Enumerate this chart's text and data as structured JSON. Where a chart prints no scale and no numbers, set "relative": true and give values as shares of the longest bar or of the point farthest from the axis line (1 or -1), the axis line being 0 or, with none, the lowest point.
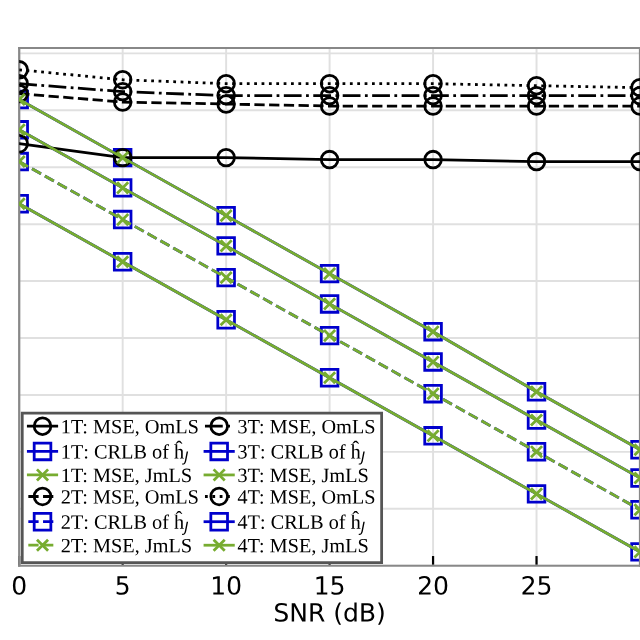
{
  "chart_data": {
    "type": "line",
    "xlabel": "SNR (dB)",
    "x": [
      0,
      5,
      10,
      15,
      20,
      25,
      30
    ],
    "xlim": [
      0,
      30
    ],
    "xticks": [
      0,
      5,
      10,
      15,
      20,
      25
    ],
    "relative": true,
    "grid": true,
    "legend": "bottom left",
    "tick_labels": "x",
    "series": [
      {
        "name": "1T: MSE, OmLS",
        "color": "#000000",
        "marker": "circle",
        "line_style": "solid",
        "values": [
          0.851,
          0.823,
          0.823,
          0.819,
          0.819,
          0.815,
          0.815
        ]
      },
      {
        "name": "1T: CRLB of ĥ$_{J}$",
        "color": "#0000cc",
        "marker": "square",
        "line_style": "solid",
        "values": [
          0.73,
          0.613,
          0.496,
          0.379,
          0.262,
          0.145,
          0.028
        ]
      },
      {
        "name": "1T: MSE, JmLS",
        "color": "#77ac30",
        "marker": "cross",
        "line_style": "solid",
        "values": [
          0.73,
          0.613,
          0.496,
          0.379,
          0.262,
          0.145,
          0.028
        ]
      },
      {
        "name": "2T: MSE, OmLS",
        "color": "#000000",
        "marker": "circle",
        "line_style": "dashed",
        "values": [
          0.952,
          0.935,
          0.931,
          0.927,
          0.927,
          0.927,
          0.927
        ]
      },
      {
        "name": "2T: CRLB of ĥ$_{J}$",
        "color": "#0000cc",
        "marker": "square",
        "line_style": "dashed",
        "values": [
          0.815,
          0.698,
          0.581,
          0.464,
          0.347,
          0.23,
          0.113
        ]
      },
      {
        "name": "2T: MSE, JmLS",
        "color": "#77ac30",
        "marker": "cross",
        "line_style": "dashed",
        "values": [
          0.815,
          0.698,
          0.581,
          0.464,
          0.347,
          0.23,
          0.113
        ]
      },
      {
        "name": "3T: MSE, OmLS",
        "color": "#000000",
        "marker": "circle",
        "line_style": "dashdot",
        "values": [
          0.972,
          0.956,
          0.948,
          0.948,
          0.948,
          0.948,
          0.948
        ]
      },
      {
        "name": "3T: CRLB of ĥ$_{J}$",
        "color": "#0000cc",
        "marker": "square",
        "line_style": "solid",
        "values": [
          0.879,
          0.762,
          0.645,
          0.528,
          0.411,
          0.294,
          0.177
        ]
      },
      {
        "name": "3T: MSE, JmLS",
        "color": "#77ac30",
        "marker": "cross",
        "line_style": "solid",
        "values": [
          0.879,
          0.762,
          0.645,
          0.528,
          0.411,
          0.294,
          0.177
        ]
      },
      {
        "name": "4T: MSE, OmLS",
        "color": "#000000",
        "marker": "circle",
        "line_style": "dotted",
        "values": [
          1.0,
          0.98,
          0.972,
          0.972,
          0.972,
          0.968,
          0.964
        ]
      },
      {
        "name": "4T: CRLB of ĥ$_{J}$",
        "color": "#0000cc",
        "marker": "square",
        "line_style": "solid",
        "values": [
          0.94,
          0.823,
          0.706,
          0.589,
          0.472,
          0.351,
          0.234
        ]
      },
      {
        "name": "4T: MSE, JmLS",
        "color": "#77ac30",
        "marker": "cross",
        "line_style": "solid",
        "values": [
          0.94,
          0.823,
          0.706,
          0.589,
          0.472,
          0.351,
          0.234
        ]
      }
    ]
  }
}
